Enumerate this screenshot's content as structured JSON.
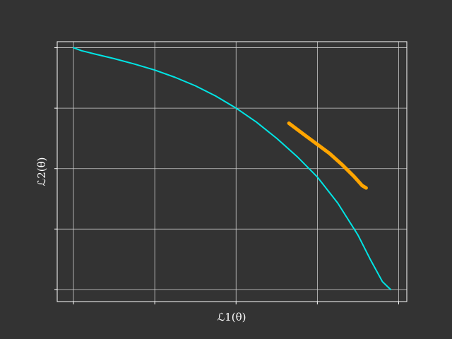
{
  "colors": {
    "background": "#333333",
    "axes": "#ffffff",
    "grid": "#cccccc",
    "pareto_front": "#00e5e5",
    "highlight_segment": "#ffa500"
  },
  "chart_data": {
    "type": "line",
    "title": "",
    "xlabel": "ℒ1(θ)",
    "ylabel": "ℒ2(θ)",
    "grid": true,
    "tick_labels_visible": false,
    "xlim": [
      -0.2,
      4.1
    ],
    "ylim": [
      -0.2,
      4.1
    ],
    "xticks": [
      0,
      1,
      2,
      3,
      4
    ],
    "yticks": [
      0,
      1,
      2,
      3,
      4
    ],
    "series": [
      {
        "color": "#00e5e5",
        "x": [
          0.0,
          0.1,
          0.25,
          0.5,
          0.75,
          1.0,
          1.25,
          1.5,
          1.75,
          2.0,
          2.25,
          2.5,
          2.75,
          3.0,
          3.25,
          3.5,
          3.65,
          3.8,
          3.9
        ],
        "y": [
          4.0,
          3.95,
          3.9,
          3.82,
          3.73,
          3.63,
          3.51,
          3.37,
          3.2,
          3.0,
          2.77,
          2.5,
          2.2,
          1.86,
          1.43,
          0.9,
          0.5,
          0.13,
          0.0
        ]
      },
      {
        "color": "#ffa500",
        "x": [
          2.65,
          2.85,
          3.0,
          3.15,
          3.3,
          3.45,
          3.55,
          3.6
        ],
        "y": [
          2.75,
          2.55,
          2.4,
          2.25,
          2.07,
          1.87,
          1.72,
          1.68
        ]
      }
    ]
  }
}
